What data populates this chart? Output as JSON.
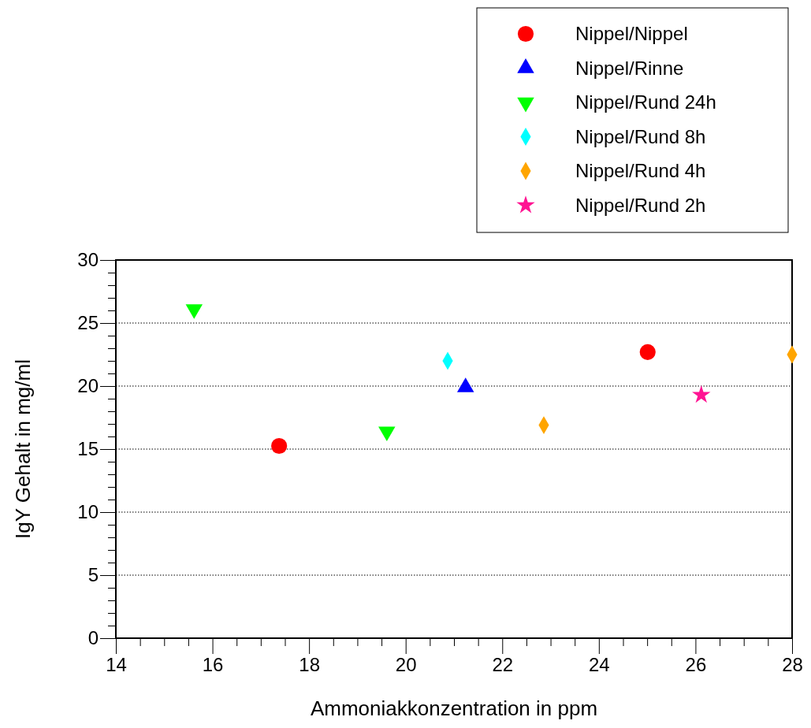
{
  "chart_data": {
    "type": "scatter",
    "xlabel": "Ammoniakkonzentration in ppm",
    "ylabel": "IgY Gehalt in mg/ml",
    "xlim": [
      14,
      28
    ],
    "ylim": [
      0,
      30
    ],
    "xticks": [
      14,
      {
        "value": 14.5,
        "label": null
      },
      {
        "value": 15,
        "label": null
      },
      {
        "value": 15.5,
        "label": null
      },
      16,
      {
        "value": 16.5,
        "label": null
      },
      {
        "value": 17,
        "label": null
      },
      {
        "value": 17.5,
        "label": null
      },
      18,
      {
        "value": 18.5,
        "label": null
      },
      {
        "value": 19,
        "label": null
      },
      {
        "value": 19.5,
        "label": null
      },
      20,
      {
        "value": 20.5,
        "label": null
      },
      {
        "value": 21,
        "label": null
      },
      {
        "value": 21.5,
        "label": null
      },
      22,
      {
        "value": 22.5,
        "label": null
      },
      {
        "value": 23,
        "label": null
      },
      {
        "value": 23.5,
        "label": null
      },
      24,
      {
        "value": 24.5,
        "label": null
      },
      {
        "value": 25,
        "label": null
      },
      {
        "value": 25.5,
        "label": null
      },
      26,
      {
        "value": 26.5,
        "label": null
      },
      {
        "value": 27,
        "label": null
      },
      {
        "value": 27.5,
        "label": null
      },
      28
    ],
    "yticks": [
      0,
      {
        "value": 1,
        "label": null
      },
      {
        "value": 2,
        "label": null
      },
      {
        "value": 3,
        "label": null
      },
      {
        "value": 4,
        "label": null
      },
      5,
      {
        "value": 6,
        "label": null
      },
      {
        "value": 7,
        "label": null
      },
      {
        "value": 8,
        "label": null
      },
      {
        "value": 9,
        "label": null
      },
      10,
      {
        "value": 11,
        "label": null
      },
      {
        "value": 12,
        "label": null
      },
      {
        "value": 13,
        "label": null
      },
      {
        "value": 14,
        "label": null
      },
      15,
      {
        "value": 16,
        "label": null
      },
      {
        "value": 17,
        "label": null
      },
      {
        "value": 18,
        "label": null
      },
      {
        "value": 19,
        "label": null
      },
      20,
      {
        "value": 21,
        "label": null
      },
      {
        "value": 22,
        "label": null
      },
      {
        "value": 23,
        "label": null
      },
      {
        "value": 24,
        "label": null
      },
      25,
      {
        "value": 26,
        "label": null
      },
      {
        "value": 27,
        "label": null
      },
      {
        "value": 28,
        "label": null
      },
      {
        "value": 29,
        "label": null
      },
      30
    ],
    "grid": "y",
    "legend": "top right",
    "series": [
      {
        "name": "Nippel/Nippel",
        "color": "#ff0000",
        "marker": "circle",
        "x": [
          17.38,
          25.01
        ],
        "values": [
          15.25,
          22.7
        ]
      },
      {
        "name": "Nippel/Rinne",
        "color": "#0000ff",
        "marker": "triangle",
        "x": [
          21.24
        ],
        "values": [
          19.9
        ]
      },
      {
        "name": "Nippel/Rund 24h",
        "color": "#00ff00",
        "marker": "triangle-down",
        "x": [
          15.62,
          19.61
        ],
        "values": [
          26.1,
          16.4
        ]
      },
      {
        "name": "Nippel/Rund 8h",
        "color": "#00ffff",
        "marker": "diamond",
        "x": [
          20.87
        ],
        "values": [
          22.0
        ]
      },
      {
        "name": "Nippel/Rund 4h",
        "color": "#ffa500",
        "marker": "diamond",
        "x": [
          22.86,
          28.0
        ],
        "values": [
          16.9,
          22.5
        ]
      },
      {
        "name": "Nippel/Rund 2h",
        "color": "#ff1493",
        "marker": "star",
        "x": [
          26.12
        ],
        "values": [
          19.3
        ]
      }
    ]
  }
}
